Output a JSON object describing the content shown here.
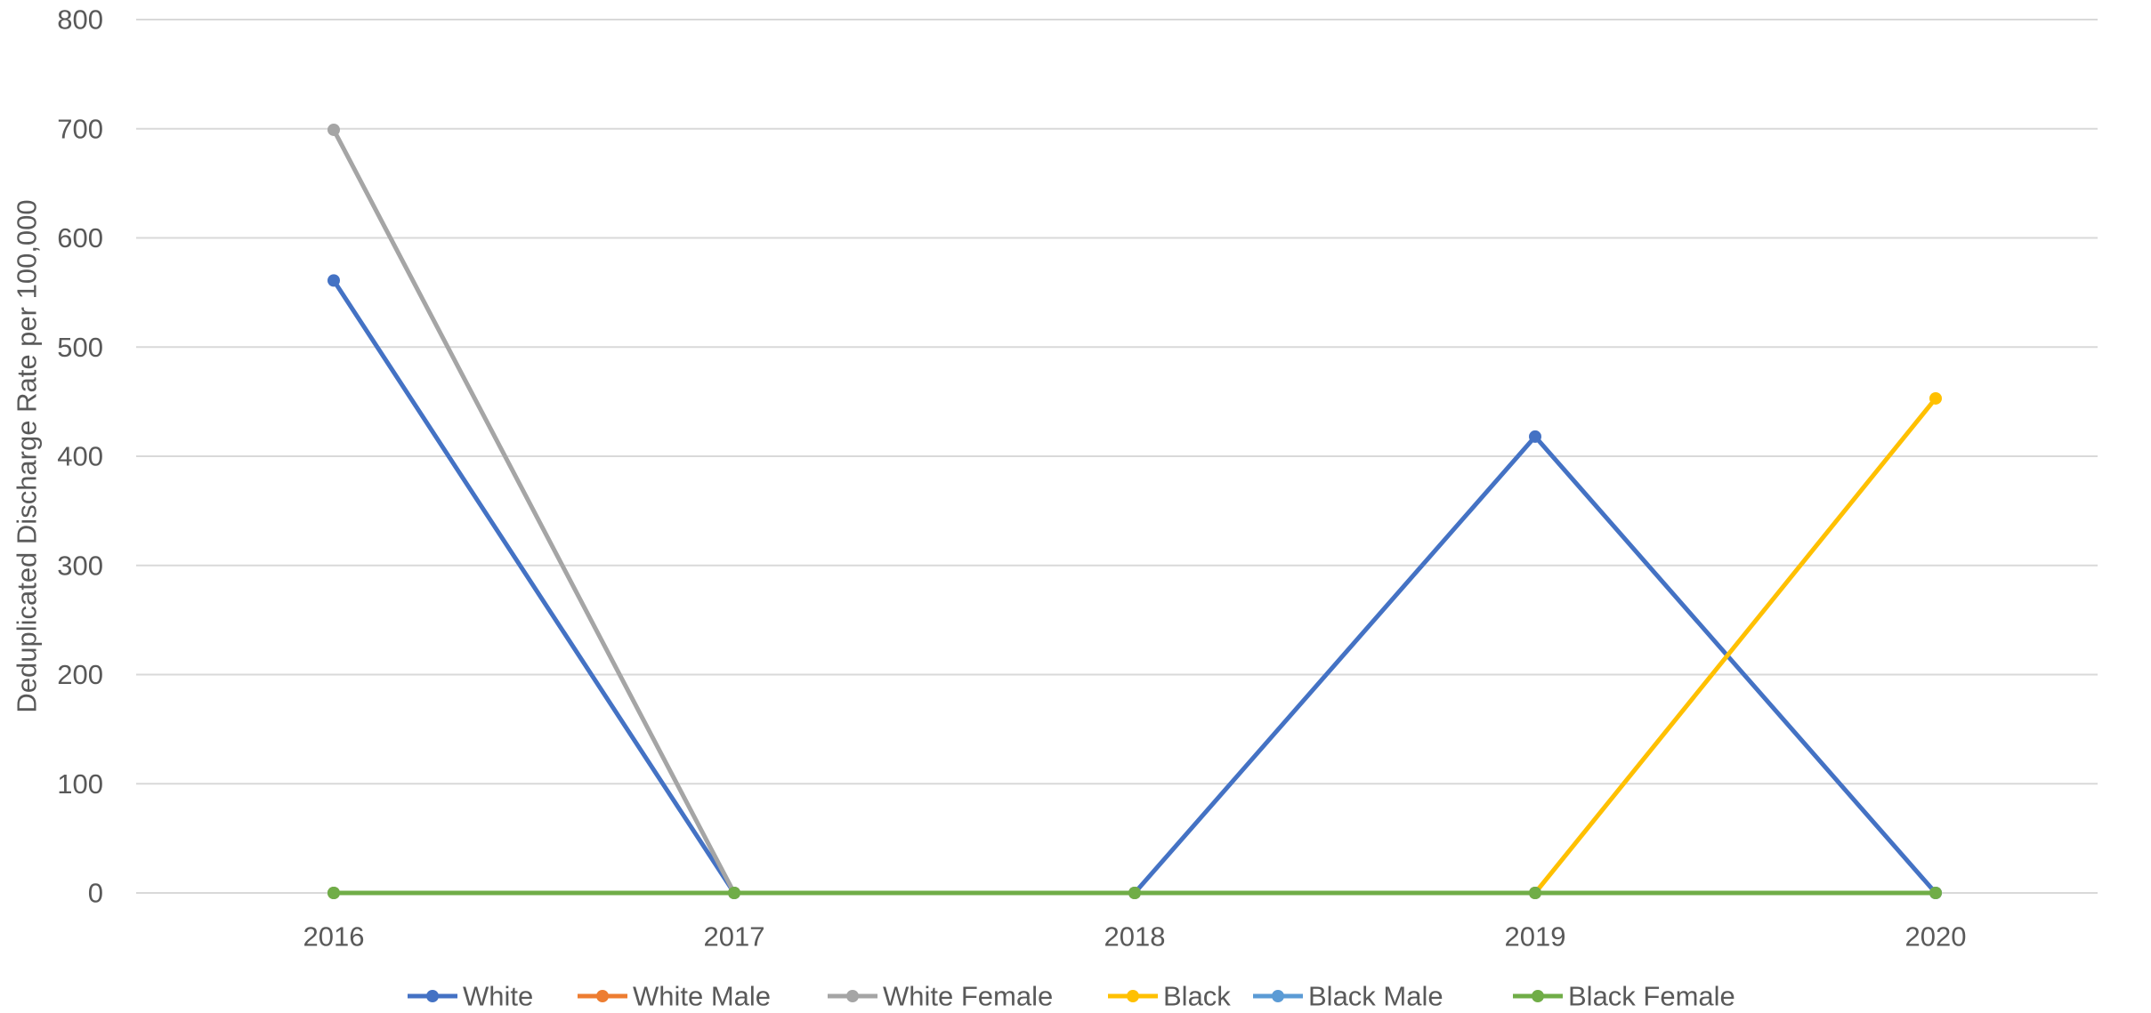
{
  "chart_data": {
    "type": "line",
    "title": "",
    "xlabel": "",
    "ylabel": "Deduplicated Discharge Rate per 100,000",
    "categories": [
      "2016",
      "2017",
      "2018",
      "2019",
      "2020"
    ],
    "ylim": [
      0,
      800
    ],
    "yticks": [
      0,
      100,
      200,
      300,
      400,
      500,
      600,
      700,
      800
    ],
    "grid": true,
    "legend_position": "bottom",
    "series": [
      {
        "name": "White",
        "color": "#4472C4",
        "values": [
          561,
          0,
          0,
          418,
          0
        ]
      },
      {
        "name": "White Male",
        "color": "#ED7D31",
        "values": [
          0,
          0,
          0,
          0,
          0
        ]
      },
      {
        "name": "White Female",
        "color": "#A5A5A5",
        "values": [
          699,
          0,
          0,
          0,
          0
        ]
      },
      {
        "name": "Black",
        "color": "#FFC000",
        "values": [
          0,
          0,
          0,
          0,
          453
        ]
      },
      {
        "name": "Black Male",
        "color": "#5B9BD5",
        "values": [
          0,
          0,
          0,
          0,
          0
        ]
      },
      {
        "name": "Black Female",
        "color": "#70AD47",
        "values": [
          0,
          0,
          0,
          0,
          0
        ]
      }
    ]
  }
}
